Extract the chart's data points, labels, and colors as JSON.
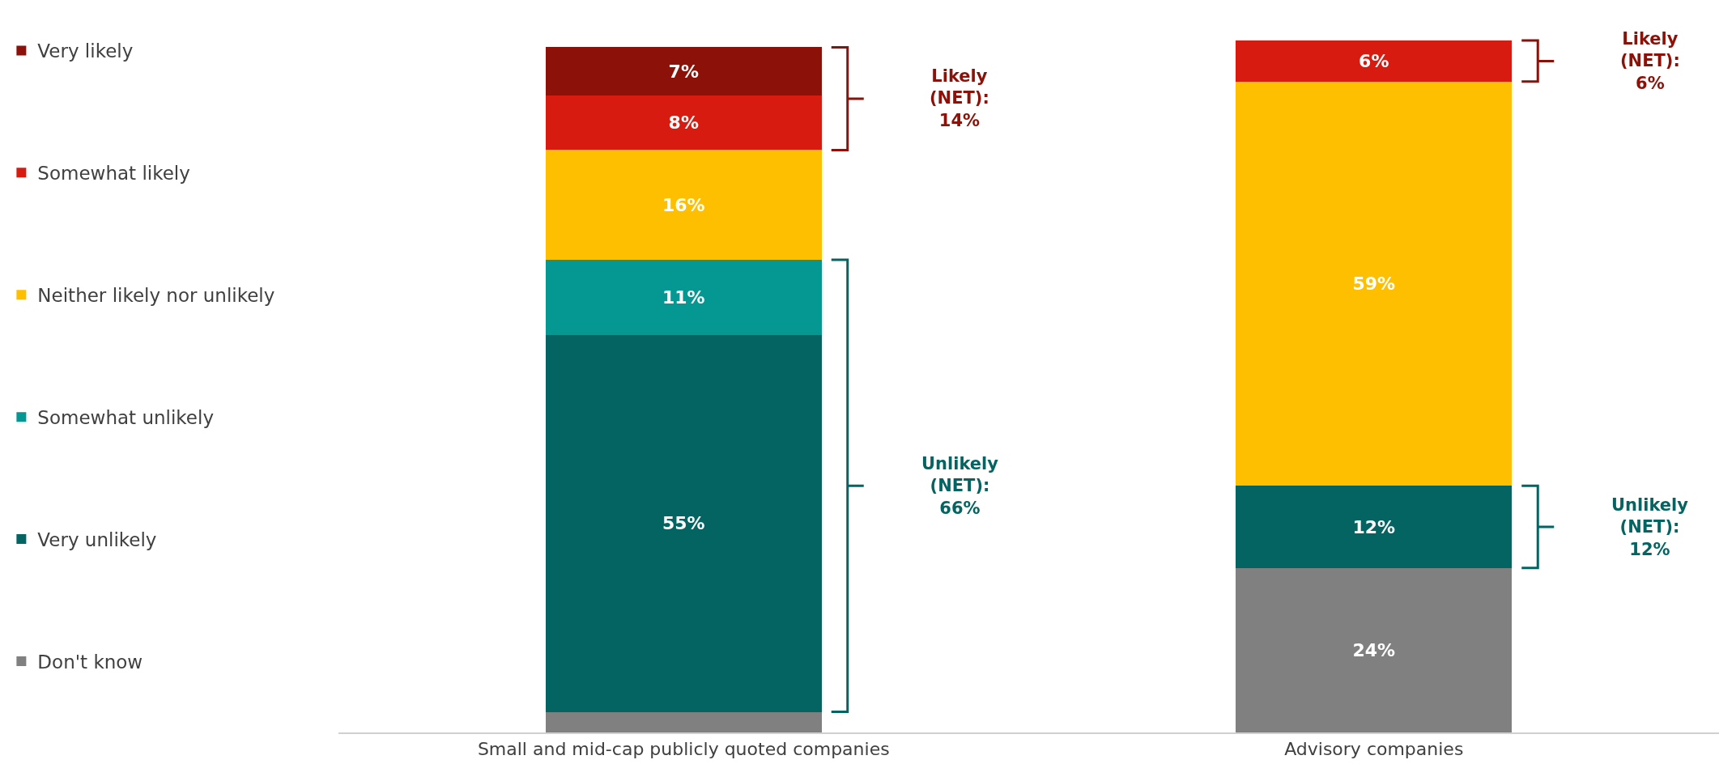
{
  "chart_data": {
    "type": "bar",
    "stacked": true,
    "legend": "left",
    "grid": false,
    "data_labels": false,
    "categories": [
      "Small and mid-cap publicly quoted companies",
      "Advisory companies"
    ],
    "series": [
      {
        "name": "Don't know",
        "color": "#808080",
        "values": [
          3,
          24
        ],
        "value_labels": [
          null,
          "24%"
        ]
      },
      {
        "name": "Very unlikely",
        "color": "#036462",
        "values": [
          55,
          12
        ],
        "value_labels": [
          "55%",
          "12%"
        ]
      },
      {
        "name": "Somewhat unlikely",
        "color": "#059893",
        "values": [
          11,
          null
        ],
        "value_labels": [
          "11%",
          null
        ]
      },
      {
        "name": "Neither likely nor unlikely",
        "color": "#fdbf00",
        "values": [
          16,
          59
        ],
        "value_labels": [
          "16%",
          "59%"
        ]
      },
      {
        "name": "Somewhat likely",
        "color": "#d81b10",
        "values": [
          8,
          6
        ],
        "value_labels": [
          "8%",
          "6%"
        ]
      },
      {
        "name": "Very likely",
        "color": "#8c1108",
        "values": [
          7,
          null
        ],
        "value_labels": [
          "7%",
          null
        ]
      }
    ],
    "annotations": [
      "Likely (NET): 14%",
      "Unlikely (NET): 66%",
      "Likely (NET): 6%",
      "Unlikely (NET): 12%"
    ]
  }
}
